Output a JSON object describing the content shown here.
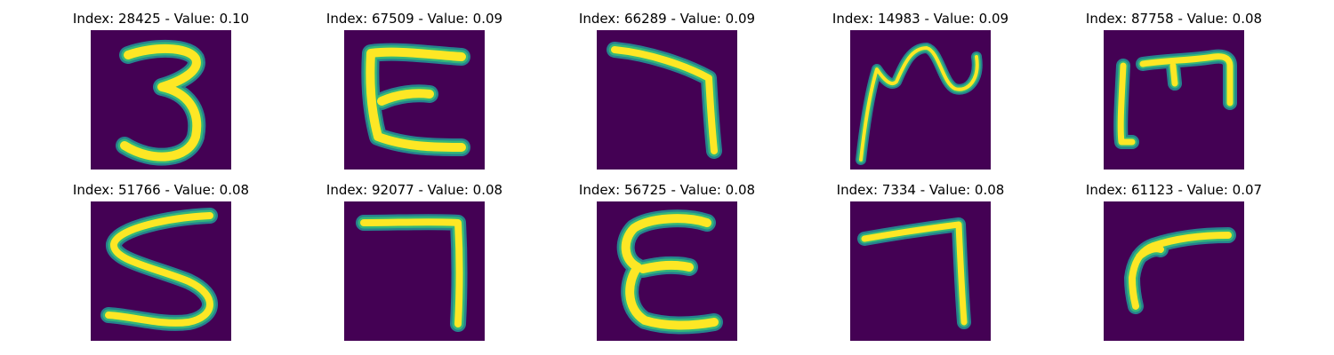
{
  "colors": {
    "background": "#440154",
    "stroke_outer": "#26828e",
    "stroke_mid": "#35b779",
    "stroke_core": "#fde725"
  },
  "panels": [
    {
      "title": "Index: 28425 - Value: 0.10",
      "index": 28425,
      "value": 0.1,
      "glyph": "3-like"
    },
    {
      "title": "Index: 67509 - Value: 0.09",
      "index": 67509,
      "value": 0.09,
      "glyph": "E-like"
    },
    {
      "title": "Index: 66289 - Value: 0.09",
      "index": 66289,
      "value": 0.09,
      "glyph": "7-like"
    },
    {
      "title": "Index: 14983 - Value: 0.09",
      "index": 14983,
      "value": 0.09,
      "glyph": "N-like-scribble"
    },
    {
      "title": "Index: 87758 - Value: 0.08",
      "index": 87758,
      "value": 0.08,
      "glyph": "M-like"
    },
    {
      "title": "Index: 51766 - Value: 0.08",
      "index": 51766,
      "value": 0.08,
      "glyph": "S-like"
    },
    {
      "title": "Index: 92077 - Value: 0.08",
      "index": 92077,
      "value": 0.08,
      "glyph": "7-like"
    },
    {
      "title": "Index: 56725 - Value: 0.08",
      "index": 56725,
      "value": 0.08,
      "glyph": "E-like"
    },
    {
      "title": "Index: 7334 - Value: 0.08",
      "index": 7334,
      "value": 0.08,
      "glyph": "7-like"
    },
    {
      "title": "Index: 61123 - Value: 0.07",
      "index": 61123,
      "value": 0.07,
      "glyph": "r-like"
    }
  ]
}
